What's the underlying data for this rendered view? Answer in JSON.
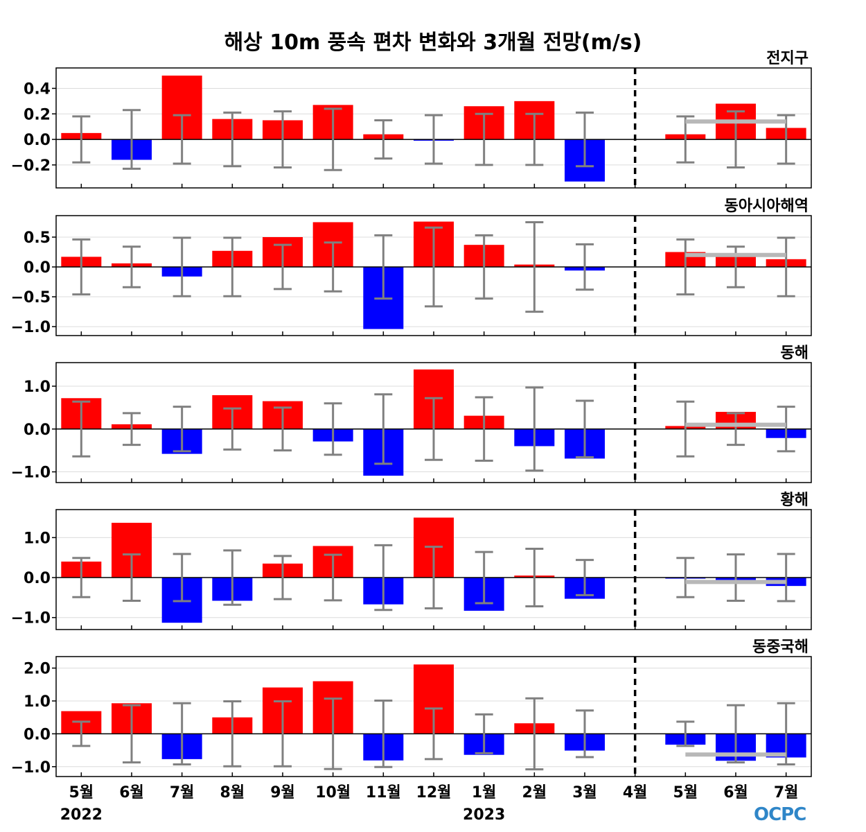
{
  "title": "해상 10m 풍속 편차 변화와 3개월 전망(m/s)",
  "logo_text": "OCPC",
  "colors": {
    "positive": "#ff0000",
    "negative": "#0000ff",
    "errorbar": "#808080",
    "outlook": "#b8b8b8",
    "divider": "#000000"
  },
  "x_labels": [
    "5월",
    "6월",
    "7월",
    "8월",
    "9월",
    "10월",
    "11월",
    "12월",
    "1월",
    "2월",
    "3월",
    "4월",
    "5월",
    "6월",
    "7월"
  ],
  "year_labels": [
    "2022",
    "2023"
  ],
  "chart_data": [
    {
      "type": "bar",
      "region": "전지구",
      "categories": [
        "5월",
        "6월",
        "7월",
        "8월",
        "9월",
        "10월",
        "11월",
        "12월",
        "1월",
        "2월",
        "3월",
        "4월",
        "5월",
        "6월",
        "7월"
      ],
      "values": [
        0.05,
        -0.16,
        0.5,
        0.16,
        0.15,
        0.27,
        0.04,
        -0.01,
        0.26,
        0.3,
        -0.33,
        0.0,
        0.04,
        0.28,
        0.09
      ],
      "error_bars": [
        0.18,
        0.23,
        0.19,
        0.21,
        0.22,
        0.24,
        0.15,
        0.19,
        0.2,
        0.2,
        0.21,
        null,
        0.18,
        0.22,
        0.19
      ],
      "outlook": 0.14,
      "ylim": [
        -0.38,
        0.56
      ],
      "yticks": [
        0.4,
        0.2,
        0.0,
        -0.2
      ],
      "ytick_labels": [
        "0.4",
        "0.2",
        "0.0",
        "−0.2"
      ]
    },
    {
      "type": "bar",
      "region": "동아시아해역",
      "categories": [
        "5월",
        "6월",
        "7월",
        "8월",
        "9월",
        "10월",
        "11월",
        "12월",
        "1월",
        "2월",
        "3월",
        "4월",
        "5월",
        "6월",
        "7월"
      ],
      "values": [
        0.17,
        0.06,
        -0.16,
        0.27,
        0.5,
        0.75,
        -1.04,
        0.76,
        0.37,
        0.04,
        -0.06,
        0.0,
        0.25,
        0.2,
        0.13
      ],
      "error_bars": [
        0.46,
        0.34,
        0.49,
        0.49,
        0.37,
        0.41,
        0.53,
        0.66,
        0.53,
        0.75,
        0.38,
        null,
        0.46,
        0.34,
        0.49
      ],
      "outlook": 0.2,
      "ylim": [
        -1.15,
        0.86
      ],
      "yticks": [
        0.5,
        0.0,
        -0.5,
        -1.0
      ],
      "ytick_labels": [
        "0.5",
        "0.0",
        "−0.5",
        "−1.0"
      ]
    },
    {
      "type": "bar",
      "region": "동해",
      "categories": [
        "5월",
        "6월",
        "7월",
        "8월",
        "9월",
        "10월",
        "11월",
        "12월",
        "1월",
        "2월",
        "3월",
        "4월",
        "5월",
        "6월",
        "7월"
      ],
      "values": [
        0.72,
        0.11,
        -0.58,
        0.79,
        0.65,
        -0.29,
        -1.09,
        1.39,
        0.31,
        -0.4,
        -0.69,
        0.0,
        0.07,
        0.4,
        -0.21
      ],
      "error_bars": [
        0.64,
        0.37,
        0.52,
        0.48,
        0.5,
        0.6,
        0.81,
        0.72,
        0.74,
        0.97,
        0.66,
        null,
        0.64,
        0.37,
        0.52
      ],
      "outlook": 0.1,
      "ylim": [
        -1.25,
        1.55
      ],
      "yticks": [
        1.0,
        0.0,
        -1.0
      ],
      "ytick_labels": [
        "1.0",
        "0.0",
        "−1.0"
      ]
    },
    {
      "type": "bar",
      "region": "황해",
      "categories": [
        "5월",
        "6월",
        "7월",
        "8월",
        "9월",
        "10월",
        "11월",
        "12월",
        "1월",
        "2월",
        "3월",
        "4월",
        "5월",
        "6월",
        "7월"
      ],
      "values": [
        0.4,
        1.37,
        -1.13,
        -0.58,
        0.35,
        0.79,
        -0.67,
        1.5,
        -0.83,
        0.05,
        -0.53,
        0.0,
        -0.01,
        -0.07,
        -0.21
      ],
      "error_bars": [
        0.49,
        0.58,
        0.59,
        0.68,
        0.54,
        0.57,
        0.81,
        0.77,
        0.64,
        0.72,
        0.44,
        null,
        0.49,
        0.58,
        0.59
      ],
      "outlook": -0.11,
      "ylim": [
        -1.3,
        1.7
      ],
      "yticks": [
        1.0,
        0.0,
        -1.0
      ],
      "ytick_labels": [
        "1.0",
        "0.0",
        "−1.0"
      ]
    },
    {
      "type": "bar",
      "region": "동중국해",
      "categories": [
        "5월",
        "6월",
        "7월",
        "8월",
        "9월",
        "10월",
        "11월",
        "12월",
        "1월",
        "2월",
        "3월",
        "4월",
        "5월",
        "6월",
        "7월"
      ],
      "values": [
        0.69,
        0.93,
        -0.77,
        0.5,
        1.41,
        1.6,
        -0.81,
        2.11,
        -0.64,
        0.32,
        -0.51,
        0.0,
        -0.33,
        -0.82,
        -0.72
      ],
      "error_bars": [
        0.37,
        0.87,
        0.93,
        0.99,
        0.99,
        1.07,
        1.01,
        0.77,
        0.59,
        1.08,
        0.71,
        null,
        0.37,
        0.87,
        0.93
      ],
      "outlook": -0.63,
      "ylim": [
        -1.3,
        2.35
      ],
      "yticks": [
        2.0,
        1.0,
        0.0,
        -1.0
      ],
      "ytick_labels": [
        "2.0",
        "1.0",
        "0.0",
        "−1.0"
      ]
    }
  ]
}
